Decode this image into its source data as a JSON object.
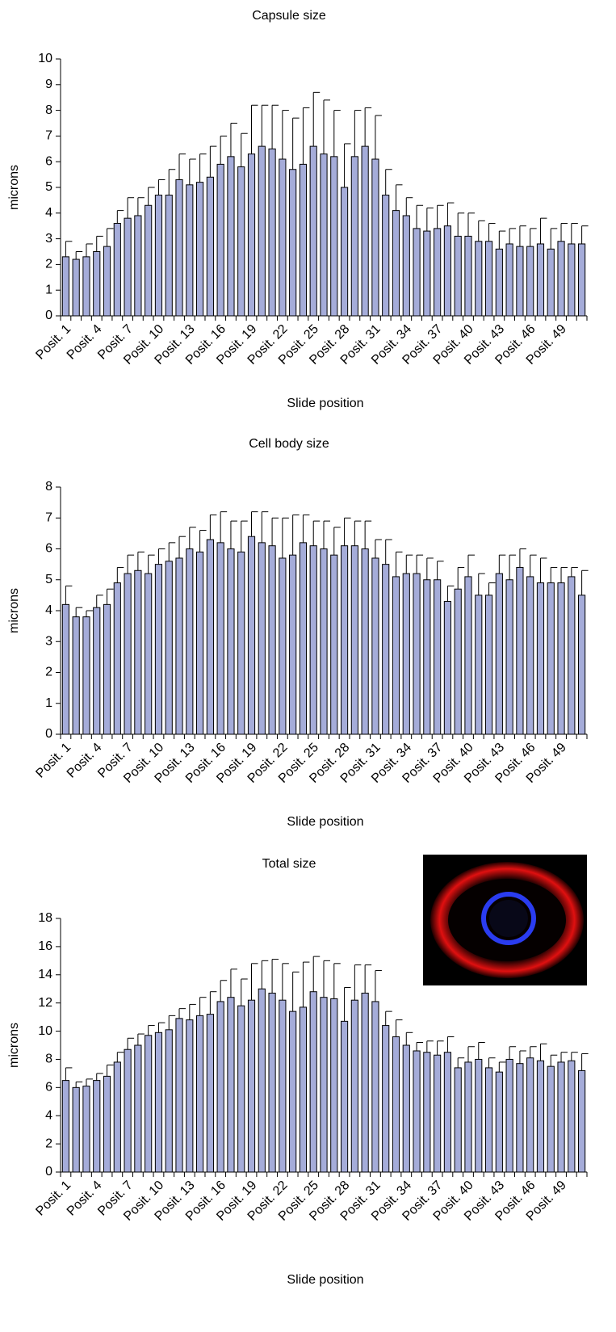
{
  "chart_data": [
    {
      "type": "bar",
      "title": "Capsule size",
      "xlabel": "Slide position",
      "ylabel": "microns",
      "categories": [
        "Posit. 1",
        null,
        null,
        "Posit. 4",
        null,
        null,
        "Posit. 7",
        null,
        null,
        "Posit. 10",
        null,
        null,
        "Posit. 13",
        null,
        null,
        "Posit. 16",
        null,
        null,
        "Posit. 19",
        null,
        null,
        "Posit. 22",
        null,
        null,
        "Posit. 25",
        null,
        null,
        "Posit. 28",
        null,
        null,
        "Posit. 31",
        null,
        null,
        "Posit. 34",
        null,
        null,
        "Posit. 37",
        null,
        null,
        "Posit. 40",
        null,
        null,
        "Posit. 43",
        null,
        null,
        "Posit. 46",
        null,
        null,
        "Posit. 49",
        null,
        null
      ],
      "values": [
        2.3,
        2.2,
        2.3,
        2.5,
        2.7,
        3.6,
        3.8,
        3.9,
        4.3,
        4.7,
        4.7,
        5.3,
        5.1,
        5.2,
        5.4,
        5.9,
        6.2,
        5.8,
        6.3,
        6.6,
        6.5,
        6.1,
        5.7,
        5.9,
        6.6,
        6.3,
        6.2,
        5.0,
        6.2,
        6.6,
        6.1,
        4.7,
        4.1,
        3.9,
        3.4,
        3.3,
        3.4,
        3.5,
        3.1,
        3.1,
        2.9,
        2.9,
        2.6,
        2.8,
        2.7,
        2.7,
        2.8,
        2.6,
        2.9,
        2.8,
        2.8
      ],
      "errors": [
        0.6,
        0.3,
        0.5,
        0.6,
        0.7,
        0.5,
        0.8,
        0.7,
        0.7,
        0.6,
        1.0,
        1.0,
        1.0,
        1.1,
        1.2,
        1.1,
        1.3,
        1.3,
        1.9,
        1.6,
        1.7,
        1.9,
        2.0,
        2.2,
        2.1,
        2.1,
        1.8,
        1.7,
        1.8,
        1.5,
        1.7,
        1.0,
        1.0,
        0.7,
        0.9,
        0.9,
        0.9,
        0.9,
        0.9,
        0.9,
        0.8,
        0.7,
        0.7,
        0.6,
        0.8,
        0.7,
        1.0,
        0.8,
        0.7,
        0.8,
        0.7
      ],
      "color": "#a5acd9",
      "ylim": [
        0,
        10
      ],
      "yticks": [
        0,
        1,
        2,
        3,
        4,
        5,
        6,
        7,
        8,
        9,
        10
      ]
    },
    {
      "type": "bar",
      "title": "Cell body size",
      "xlabel": "Slide position",
      "ylabel": "microns",
      "categories": [
        "Posit. 1",
        null,
        null,
        "Posit. 4",
        null,
        null,
        "Posit. 7",
        null,
        null,
        "Posit. 10",
        null,
        null,
        "Posit. 13",
        null,
        null,
        "Posit. 16",
        null,
        null,
        "Posit. 19",
        null,
        null,
        "Posit. 22",
        null,
        null,
        "Posit. 25",
        null,
        null,
        "Posit. 28",
        null,
        null,
        "Posit. 31",
        null,
        null,
        "Posit. 34",
        null,
        null,
        "Posit. 37",
        null,
        null,
        "Posit. 40",
        null,
        null,
        "Posit. 43",
        null,
        null,
        "Posit. 46",
        null,
        null,
        "Posit. 49",
        null,
        null
      ],
      "values": [
        4.2,
        3.8,
        3.8,
        4.1,
        4.2,
        4.9,
        5.2,
        5.3,
        5.2,
        5.5,
        5.6,
        5.7,
        6.0,
        5.9,
        6.3,
        6.2,
        6.0,
        5.9,
        6.4,
        6.2,
        6.1,
        5.7,
        5.8,
        6.2,
        6.1,
        6.0,
        5.8,
        6.1,
        6.1,
        6.0,
        5.7,
        5.5,
        5.1,
        5.2,
        5.2,
        5.0,
        5.0,
        4.3,
        4.7,
        5.1,
        4.5,
        4.5,
        5.2,
        5.0,
        5.4,
        5.1,
        4.9,
        4.9,
        4.9,
        5.1,
        4.5
      ],
      "errors": [
        0.6,
        0.3,
        0.2,
        0.4,
        0.5,
        0.5,
        0.6,
        0.6,
        0.6,
        0.5,
        0.6,
        0.7,
        0.7,
        0.7,
        0.8,
        1.0,
        0.9,
        1.0,
        0.8,
        1.0,
        0.9,
        1.3,
        1.3,
        0.9,
        0.8,
        0.9,
        0.9,
        0.9,
        0.8,
        0.9,
        0.6,
        0.8,
        0.8,
        0.6,
        0.6,
        0.7,
        0.6,
        0.5,
        0.7,
        0.7,
        0.7,
        0.4,
        0.6,
        0.8,
        0.6,
        0.7,
        0.8,
        0.5,
        0.5,
        0.3,
        0.8
      ],
      "color": "#a5acd9",
      "ylim": [
        0,
        8
      ],
      "yticks": [
        0,
        1,
        2,
        3,
        4,
        5,
        6,
        7,
        8
      ]
    },
    {
      "type": "bar",
      "title": "Total size",
      "xlabel": "Slide position",
      "ylabel": "microns",
      "categories": [
        "Posit. 1",
        null,
        null,
        "Posit. 4",
        null,
        null,
        "Posit. 7",
        null,
        null,
        "Posit. 10",
        null,
        null,
        "Posit. 13",
        null,
        null,
        "Posit. 16",
        null,
        null,
        "Posit. 19",
        null,
        null,
        "Posit. 22",
        null,
        null,
        "Posit. 25",
        null,
        null,
        "Posit. 28",
        null,
        null,
        "Posit. 31",
        null,
        null,
        "Posit. 34",
        null,
        null,
        "Posit. 37",
        null,
        null,
        "Posit. 40",
        null,
        null,
        "Posit. 43",
        null,
        null,
        "Posit. 46",
        null,
        null,
        "Posit. 49",
        null,
        null
      ],
      "values": [
        6.5,
        6.0,
        6.1,
        6.5,
        6.8,
        7.8,
        8.7,
        9.0,
        9.7,
        9.9,
        10.1,
        10.9,
        10.8,
        11.1,
        11.2,
        12.1,
        12.4,
        11.8,
        12.2,
        13.0,
        12.7,
        12.2,
        11.4,
        11.7,
        12.8,
        12.4,
        12.3,
        10.7,
        12.2,
        12.7,
        12.1,
        10.4,
        9.6,
        9.0,
        8.6,
        8.5,
        8.3,
        8.5,
        7.4,
        7.8,
        8.0,
        7.4,
        7.1,
        8.0,
        7.7,
        8.1,
        7.9,
        7.5,
        7.8,
        7.9,
        7.2
      ],
      "errors": [
        0.9,
        0.4,
        0.5,
        0.5,
        0.8,
        0.7,
        0.8,
        0.8,
        0.7,
        0.7,
        1.0,
        0.7,
        1.1,
        1.3,
        1.6,
        1.5,
        2.0,
        1.9,
        2.6,
        2.0,
        2.4,
        2.6,
        2.8,
        3.2,
        2.5,
        2.6,
        2.5,
        2.4,
        2.5,
        2.0,
        2.2,
        1.0,
        1.2,
        0.9,
        0.6,
        0.8,
        1.0,
        1.1,
        0.7,
        1.1,
        1.2,
        0.7,
        0.7,
        0.9,
        0.9,
        0.8,
        1.2,
        0.8,
        0.7,
        0.6,
        1.2
      ],
      "color": "#a5acd9",
      "ylim": [
        0,
        18
      ],
      "yticks": [
        0,
        2,
        4,
        6,
        8,
        10,
        12,
        14,
        16,
        18
      ]
    }
  ]
}
